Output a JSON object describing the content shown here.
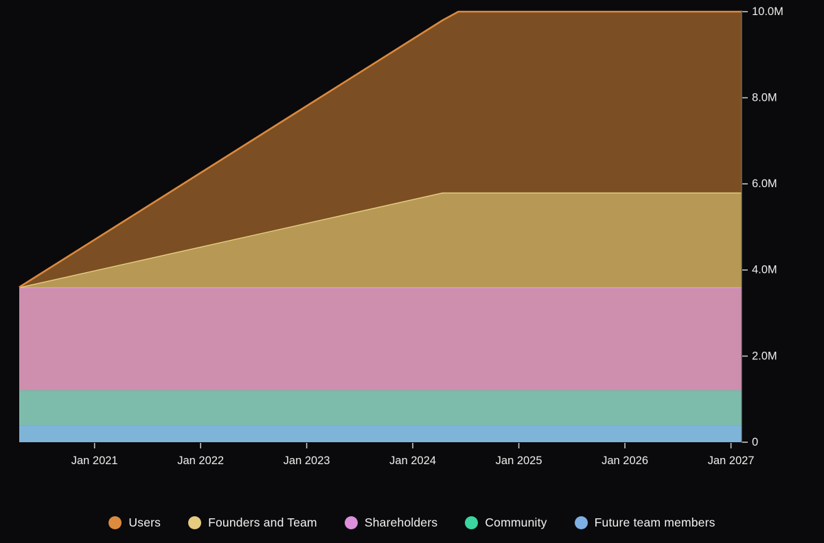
{
  "page": {
    "background": "#0a0a0c"
  },
  "chart_data": {
    "type": "area",
    "stacked": true,
    "title": "",
    "xlabel": "",
    "ylabel": "",
    "grid": false,
    "legend_position": "bottom",
    "x_unit": "calendar time (years)",
    "x_range": [
      2020.29,
      2027.1
    ],
    "ylim_millions": [
      0,
      10
    ],
    "x_breakpoints": [
      2020.29,
      2024.28,
      2024.43,
      2027.1
    ],
    "series": [
      {
        "id": "future-team-members",
        "name": "Future team members",
        "values_millions": [
          0.4,
          0.4,
          0.4,
          0.4
        ],
        "fill": "#7FB4D9",
        "stroke": "#77ADE6"
      },
      {
        "id": "community",
        "name": "Community",
        "values_millions": [
          0.8,
          0.8,
          0.8,
          0.8
        ],
        "fill": "#7DBCAB",
        "stroke": "#3ED6A1"
      },
      {
        "id": "shareholders",
        "name": "Shareholders",
        "values_millions": [
          2.4,
          2.4,
          2.4,
          2.4
        ],
        "fill": "#CE8EAE",
        "stroke": "#DF99D9"
      },
      {
        "id": "founders-and-team",
        "name": "Founders and Team",
        "values_millions": [
          0,
          2.2,
          2.2,
          2.2
        ],
        "fill": "#B79955",
        "stroke": "#EBD287"
      },
      {
        "id": "users",
        "name": "Users",
        "values_millions": [
          0,
          4.0,
          4.2,
          4.2
        ],
        "fill": "#7B4F23",
        "stroke": "#DD8A3F"
      }
    ],
    "x_ticks": [
      {
        "label": "Jan 2021",
        "year": 2021
      },
      {
        "label": "Jan 2022",
        "year": 2022
      },
      {
        "label": "Jan 2023",
        "year": 2023
      },
      {
        "label": "Jan 2024",
        "year": 2024
      },
      {
        "label": "Jan 2025",
        "year": 2025
      },
      {
        "label": "Jan 2026",
        "year": 2026
      },
      {
        "label": "Jan 2027",
        "year": 2027
      }
    ],
    "y_ticks": [
      {
        "label": "0",
        "value": 0
      },
      {
        "label": "2.0M",
        "value": 2
      },
      {
        "label": "4.0M",
        "value": 4
      },
      {
        "label": "6.0M",
        "value": 6
      },
      {
        "label": "8.0M",
        "value": 8
      },
      {
        "label": "10.0M",
        "value": 10
      }
    ],
    "legend": [
      {
        "id": "users",
        "label": "Users",
        "color": "#DD8A3F"
      },
      {
        "id": "founders-and-team",
        "label": "Founders and Team",
        "color": "#E7CB7E"
      },
      {
        "id": "shareholders",
        "label": "Shareholders",
        "color": "#DD8FDC"
      },
      {
        "id": "community",
        "label": "Community",
        "color": "#3BD6A0"
      },
      {
        "id": "future-team-members",
        "label": "Future team members",
        "color": "#7FB0E4"
      }
    ],
    "axis": {
      "line_color": "#7f7f7f",
      "tick_color": "#c8c8c8",
      "label_color": "#eeeeee"
    }
  }
}
